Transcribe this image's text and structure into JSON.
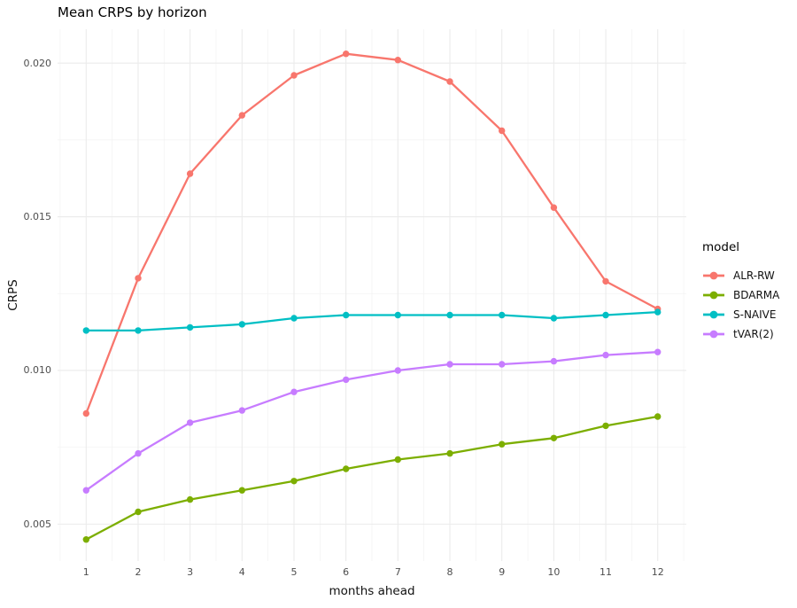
{
  "page_title": "Mean CRPS by horizon",
  "chart_data": {
    "type": "line",
    "title": "Mean CRPS by horizon",
    "xlabel": "months ahead",
    "ylabel": "CRPS",
    "x": [
      1,
      2,
      3,
      4,
      5,
      6,
      7,
      8,
      9,
      10,
      11,
      12
    ],
    "series": [
      {
        "name": "ALR-RW",
        "color": "#F8766D",
        "values": [
          0.0086,
          0.013,
          0.0164,
          0.0183,
          0.0196,
          0.0203,
          0.0201,
          0.0194,
          0.0178,
          0.0153,
          0.0129,
          0.012
        ]
      },
      {
        "name": "BDARMA",
        "color": "#7CAE00",
        "values": [
          0.0045,
          0.0054,
          0.0058,
          0.0061,
          0.0064,
          0.0068,
          0.0071,
          0.0073,
          0.0076,
          0.0078,
          0.0082,
          0.0085
        ]
      },
      {
        "name": "S-NAIVE",
        "color": "#00BFC4",
        "values": [
          0.0113,
          0.0113,
          0.0114,
          0.0115,
          0.0117,
          0.0118,
          0.0118,
          0.0118,
          0.0118,
          0.0117,
          0.0118,
          0.0119
        ]
      },
      {
        "name": "tVAR(2)",
        "color": "#C77CFF",
        "values": [
          0.0061,
          0.0073,
          0.0083,
          0.0087,
          0.0093,
          0.0097,
          0.01,
          0.0102,
          0.0102,
          0.0103,
          0.0105,
          0.0106
        ]
      }
    ],
    "legend": {
      "title": "model",
      "position": "right"
    },
    "axes": {
      "xlim": [
        0.45,
        12.55
      ],
      "ylim": [
        0.0038,
        0.0211
      ],
      "x_ticks": [
        1,
        2,
        3,
        4,
        5,
        6,
        7,
        8,
        9,
        10,
        11,
        12
      ],
      "x_tick_labels": [
        "1",
        "2",
        "3",
        "4",
        "5",
        "6",
        "7",
        "8",
        "9",
        "10",
        "11",
        "12"
      ],
      "y_ticks": [
        0.005,
        0.01,
        0.015,
        0.02
      ],
      "y_tick_labels": [
        "0.005",
        "0.010",
        "0.015",
        "0.020"
      ],
      "x_minor": [
        0.5,
        1.5,
        2.5,
        3.5,
        4.5,
        5.5,
        6.5,
        7.5,
        8.5,
        9.5,
        10.5,
        11.5,
        12.5
      ],
      "y_minor": [
        0.0075,
        0.0125,
        0.0175
      ],
      "grid": true
    },
    "colors": {
      "grid_major": "#EBEBEB",
      "grid_minor": "#F2F2F2",
      "tick_label": "#4D4D4D",
      "axis_title": "#111111",
      "title": "#000000",
      "background": "#FFFFFF"
    }
  }
}
